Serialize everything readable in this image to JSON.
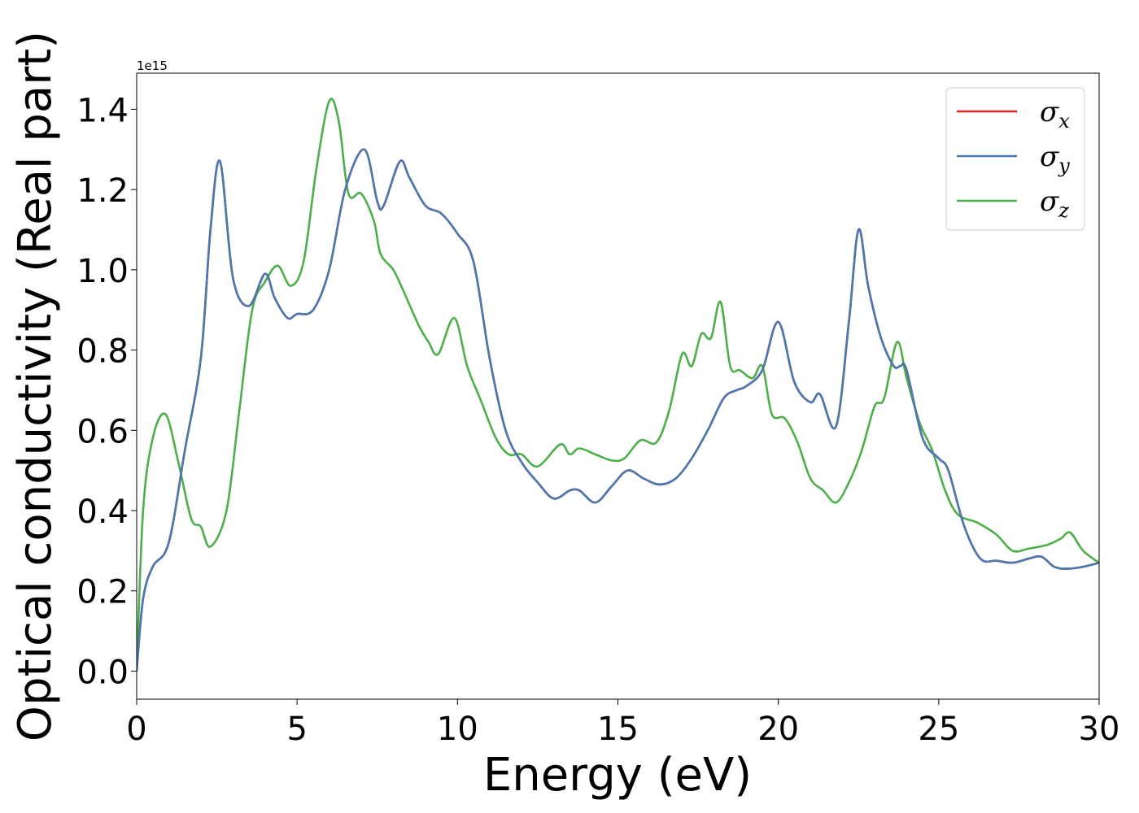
{
  "chart_data": {
    "type": "line",
    "title": "",
    "xlabel": "Energy (eV)",
    "ylabel": "Optical conductivity (Real part)",
    "y_offset_label": "1e15",
    "xlim": [
      0,
      30
    ],
    "ylim": [
      -0.07,
      1.49
    ],
    "xticks": [
      0,
      5,
      10,
      15,
      20,
      25,
      30
    ],
    "xtick_labels": [
      "0",
      "5",
      "10",
      "15",
      "20",
      "25",
      "30"
    ],
    "yticks": [
      0.0,
      0.2,
      0.4,
      0.6,
      0.8,
      1.0,
      1.2,
      1.4
    ],
    "ytick_labels": [
      "0.0",
      "0.2",
      "0.4",
      "0.6",
      "0.8",
      "1.0",
      "1.2",
      "1.4"
    ],
    "grid": false,
    "legend_position": "top-right",
    "series": [
      {
        "name": "σx",
        "base": "σ",
        "sub": "x",
        "color": "#d62728",
        "x": [
          0,
          0.2,
          0.5,
          1.0,
          1.5,
          2.0,
          2.3,
          2.6,
          3.0,
          3.5,
          4.0,
          4.3,
          4.7,
          5.0,
          5.5,
          6.0,
          6.5,
          7.1,
          7.5,
          7.7,
          8.2,
          8.5,
          9.0,
          9.5,
          10.0,
          10.5,
          11.0,
          11.5,
          12.0,
          12.5,
          13.0,
          13.5,
          13.8,
          14.3,
          14.8,
          15.3,
          15.8,
          16.3,
          16.8,
          17.3,
          17.8,
          18.3,
          18.7,
          19.0,
          19.5,
          20.0,
          20.5,
          21.0,
          21.3,
          21.8,
          22.2,
          22.5,
          22.8,
          23.2,
          23.6,
          23.8,
          24.0,
          24.5,
          25.0,
          25.3,
          25.8,
          26.3,
          26.8,
          27.3,
          27.8,
          28.2,
          28.6,
          29.0,
          29.5,
          30.0
        ],
        "values": [
          0.0,
          0.18,
          0.26,
          0.32,
          0.55,
          0.78,
          1.1,
          1.27,
          0.98,
          0.91,
          0.99,
          0.93,
          0.88,
          0.89,
          0.9,
          1.0,
          1.2,
          1.3,
          1.17,
          1.16,
          1.27,
          1.23,
          1.16,
          1.14,
          1.09,
          1.02,
          0.78,
          0.6,
          0.52,
          0.47,
          0.43,
          0.45,
          0.45,
          0.42,
          0.46,
          0.5,
          0.48,
          0.465,
          0.48,
          0.53,
          0.6,
          0.68,
          0.7,
          0.71,
          0.75,
          0.87,
          0.72,
          0.67,
          0.69,
          0.61,
          0.87,
          1.1,
          0.96,
          0.83,
          0.76,
          0.76,
          0.75,
          0.58,
          0.53,
          0.5,
          0.36,
          0.28,
          0.275,
          0.27,
          0.28,
          0.285,
          0.26,
          0.255,
          0.26,
          0.27
        ]
      },
      {
        "name": "σy",
        "base": "σ",
        "sub": "y",
        "color": "#4a78b0",
        "x": [
          0,
          0.2,
          0.5,
          1.0,
          1.5,
          2.0,
          2.3,
          2.6,
          3.0,
          3.5,
          4.0,
          4.3,
          4.7,
          5.0,
          5.5,
          6.0,
          6.5,
          7.1,
          7.5,
          7.7,
          8.2,
          8.5,
          9.0,
          9.5,
          10.0,
          10.5,
          11.0,
          11.5,
          12.0,
          12.5,
          13.0,
          13.5,
          13.8,
          14.3,
          14.8,
          15.3,
          15.8,
          16.3,
          16.8,
          17.3,
          17.8,
          18.3,
          18.7,
          19.0,
          19.5,
          20.0,
          20.5,
          21.0,
          21.3,
          21.8,
          22.2,
          22.5,
          22.8,
          23.2,
          23.6,
          23.8,
          24.0,
          24.5,
          25.0,
          25.3,
          25.8,
          26.3,
          26.8,
          27.3,
          27.8,
          28.2,
          28.6,
          29.0,
          29.5,
          30.0
        ],
        "values": [
          0.0,
          0.18,
          0.26,
          0.32,
          0.55,
          0.78,
          1.1,
          1.27,
          0.98,
          0.91,
          0.99,
          0.93,
          0.88,
          0.89,
          0.9,
          1.0,
          1.2,
          1.3,
          1.17,
          1.16,
          1.27,
          1.23,
          1.16,
          1.14,
          1.09,
          1.02,
          0.78,
          0.6,
          0.52,
          0.47,
          0.43,
          0.45,
          0.45,
          0.42,
          0.46,
          0.5,
          0.48,
          0.465,
          0.48,
          0.53,
          0.6,
          0.68,
          0.7,
          0.71,
          0.75,
          0.87,
          0.72,
          0.67,
          0.69,
          0.61,
          0.87,
          1.1,
          0.96,
          0.83,
          0.76,
          0.76,
          0.75,
          0.58,
          0.53,
          0.5,
          0.36,
          0.28,
          0.275,
          0.27,
          0.28,
          0.285,
          0.26,
          0.255,
          0.26,
          0.27
        ]
      },
      {
        "name": "σz",
        "base": "σ",
        "sub": "z",
        "color": "#4daf4a",
        "x": [
          0,
          0.2,
          0.5,
          0.9,
          1.3,
          1.7,
          2.0,
          2.3,
          2.8,
          3.2,
          3.6,
          4.0,
          4.4,
          4.8,
          5.2,
          5.6,
          6.0,
          6.3,
          6.6,
          7.0,
          7.4,
          7.6,
          8.0,
          8.3,
          8.8,
          9.1,
          9.4,
          9.9,
          10.3,
          10.7,
          11.2,
          11.6,
          12.0,
          12.5,
          13.2,
          13.5,
          13.8,
          14.3,
          14.8,
          15.2,
          15.7,
          16.2,
          16.6,
          17.0,
          17.3,
          17.6,
          17.9,
          18.2,
          18.5,
          18.8,
          19.2,
          19.5,
          19.8,
          20.2,
          20.6,
          21.0,
          21.4,
          21.8,
          22.2,
          22.6,
          23.0,
          23.3,
          23.7,
          24.0,
          24.4,
          24.8,
          25.2,
          25.6,
          26.2,
          26.8,
          27.3,
          27.8,
          28.4,
          28.8,
          29.1,
          29.5,
          30.0
        ],
        "values": [
          0.0,
          0.4,
          0.58,
          0.64,
          0.52,
          0.38,
          0.36,
          0.31,
          0.4,
          0.65,
          0.9,
          0.97,
          1.01,
          0.96,
          1.02,
          1.25,
          1.42,
          1.37,
          1.19,
          1.19,
          1.12,
          1.04,
          1.0,
          0.95,
          0.86,
          0.82,
          0.79,
          0.88,
          0.76,
          0.68,
          0.58,
          0.54,
          0.54,
          0.51,
          0.565,
          0.54,
          0.555,
          0.54,
          0.525,
          0.53,
          0.575,
          0.57,
          0.65,
          0.79,
          0.76,
          0.84,
          0.83,
          0.92,
          0.76,
          0.75,
          0.73,
          0.76,
          0.64,
          0.63,
          0.57,
          0.48,
          0.45,
          0.42,
          0.47,
          0.55,
          0.66,
          0.68,
          0.82,
          0.73,
          0.62,
          0.55,
          0.45,
          0.39,
          0.37,
          0.34,
          0.3,
          0.305,
          0.315,
          0.33,
          0.345,
          0.3,
          0.27
        ]
      }
    ]
  }
}
